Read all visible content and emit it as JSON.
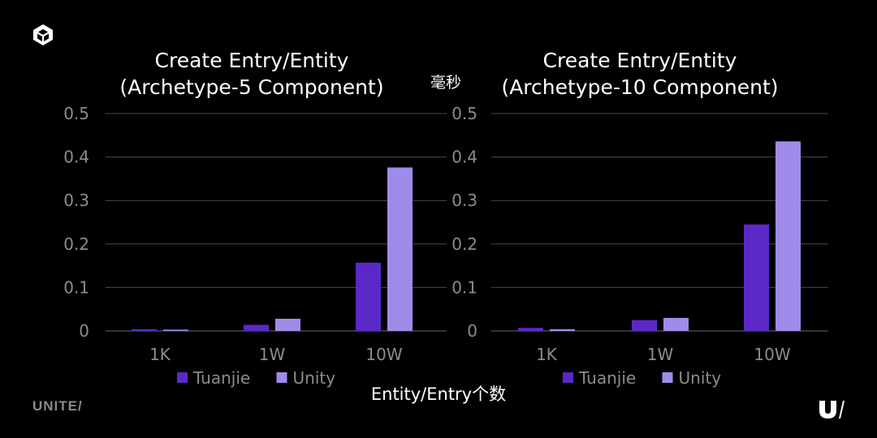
{
  "chart_data": [
    {
      "type": "bar",
      "title_lines": [
        "Create Entry/Entity",
        "(Archetype-5 Component)"
      ],
      "categories": [
        "1K",
        "1W",
        "10W"
      ],
      "series": [
        {
          "name": "Tuanjie",
          "color": "#5b28c8",
          "values": [
            0.004,
            0.014,
            0.157
          ]
        },
        {
          "name": "Unity",
          "color": "#a08bea",
          "values": [
            0.003,
            0.028,
            0.376
          ]
        }
      ],
      "ylim": [
        0,
        0.5
      ],
      "yticks": [
        "0",
        "0.1",
        "0.2",
        "0.3",
        "0.4",
        "0.5"
      ],
      "grid": true,
      "legend": "bottom"
    },
    {
      "type": "bar",
      "title_lines": [
        "Create Entry/Entity",
        "(Archetype-10 Component)"
      ],
      "categories": [
        "1K",
        "1W",
        "10W"
      ],
      "series": [
        {
          "name": "Tuanjie",
          "color": "#5b28c8",
          "values": [
            0.007,
            0.025,
            0.245
          ]
        },
        {
          "name": "Unity",
          "color": "#a08bea",
          "values": [
            0.004,
            0.03,
            0.436
          ]
        }
      ],
      "ylim": [
        0,
        0.5
      ],
      "yticks": [
        "0",
        "0.1",
        "0.2",
        "0.3",
        "0.4",
        "0.5"
      ],
      "grid": true,
      "legend": "bottom"
    }
  ],
  "unit_label": "毫秒",
  "x_axis_title": "Entity/Entry个数",
  "brand_text": "UNITE/",
  "icons": {
    "top_left": "unity-cube-logo-icon",
    "bottom_right": "unite-u-logo-icon"
  }
}
